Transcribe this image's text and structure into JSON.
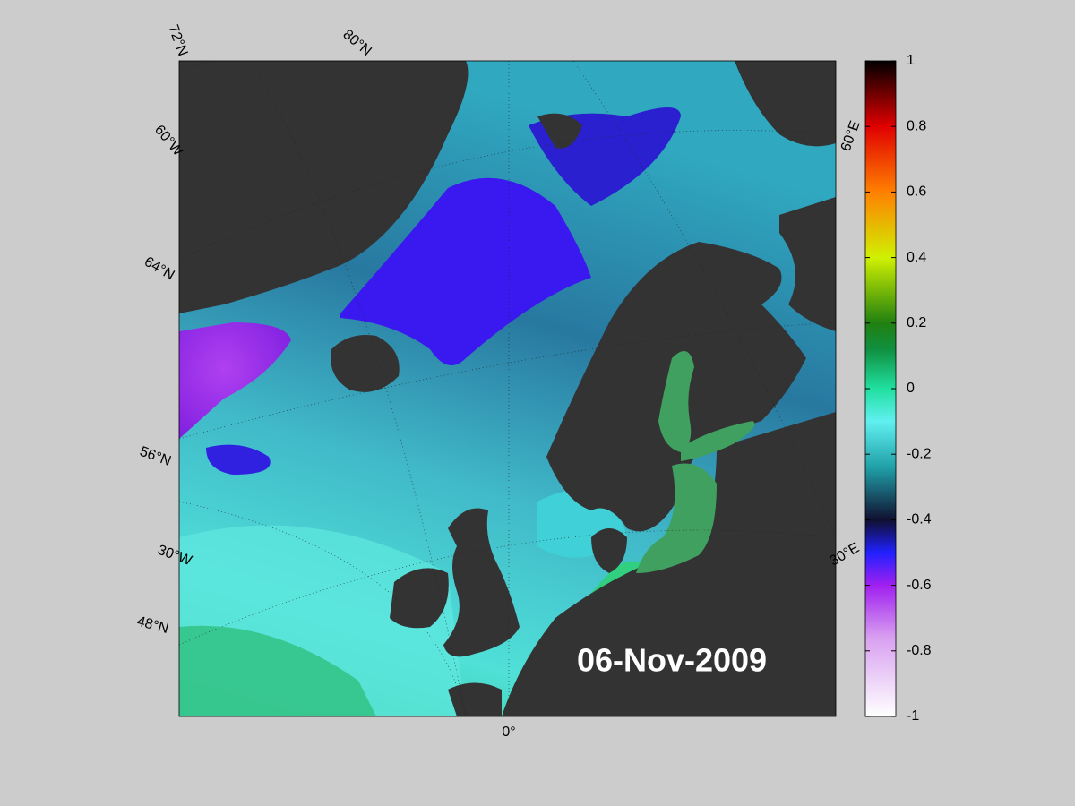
{
  "map": {
    "graticule_labels": [
      "72°N",
      "80°N",
      "60°W",
      "64°N",
      "56°N",
      "30°W",
      "48°N",
      "0°",
      "30°E",
      "60°E"
    ],
    "date": "06-Nov-2009"
  },
  "colorbar": {
    "lim": [
      -1,
      1
    ],
    "ticks": [
      1,
      0.8,
      0.6,
      0.4,
      0.2,
      0,
      -0.2,
      -0.4,
      -0.6,
      -0.8,
      -1
    ]
  }
}
